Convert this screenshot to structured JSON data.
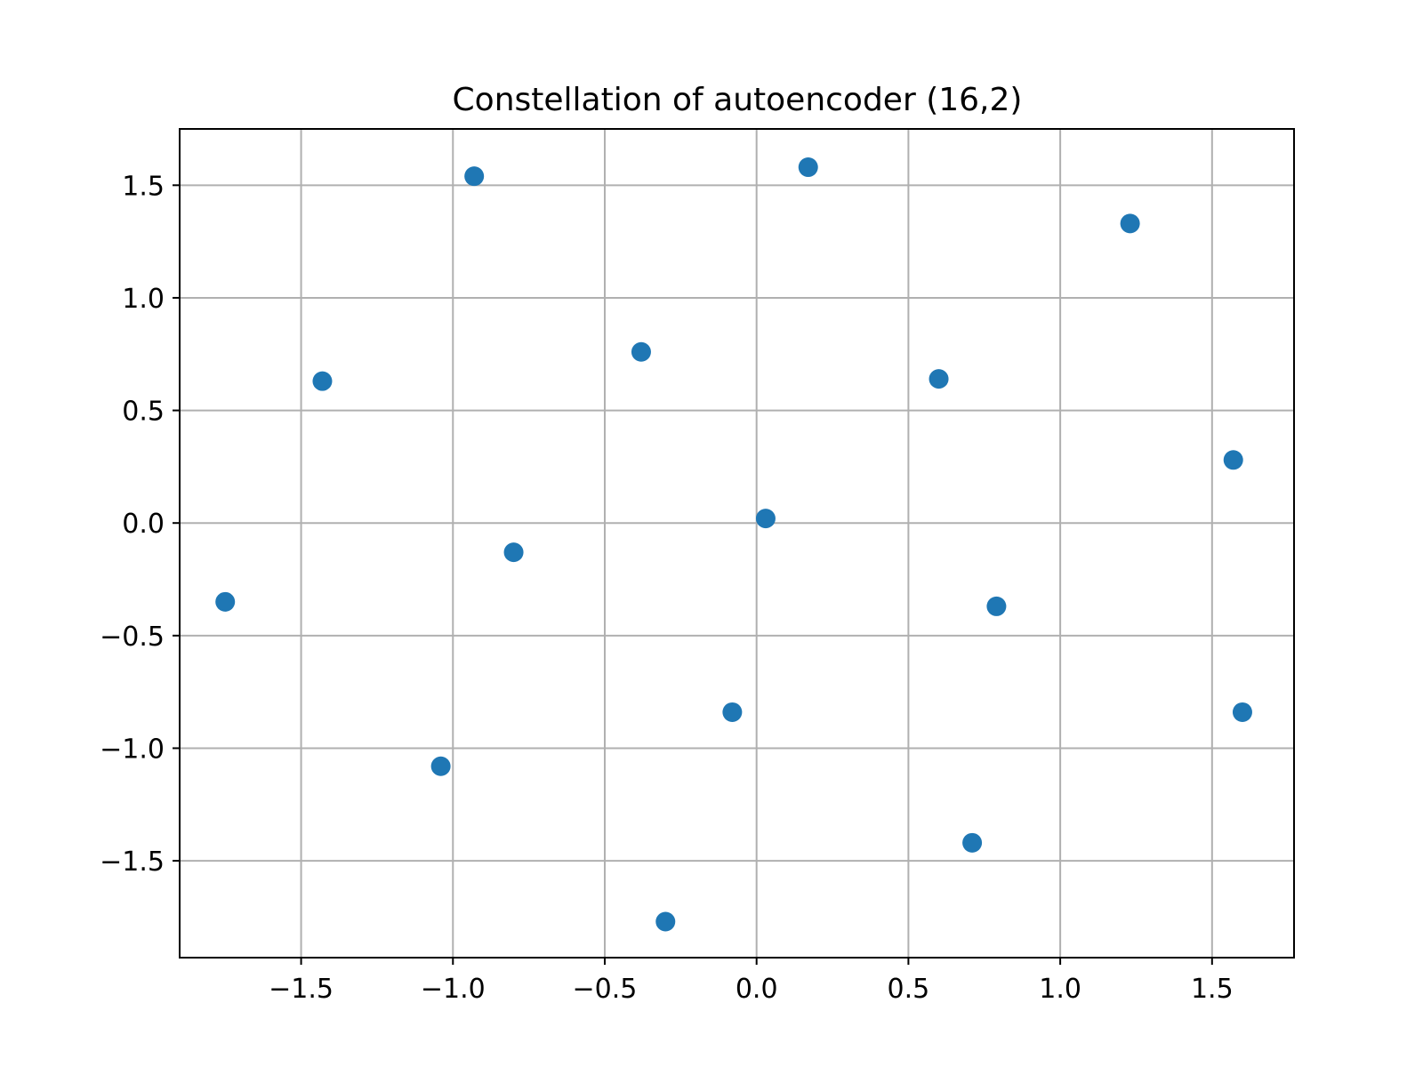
{
  "chart_data": {
    "type": "scatter",
    "title": "Constellation of autoencoder (16,2)",
    "xlabel": "",
    "ylabel": "",
    "xlim": [
      -1.9,
      1.77
    ],
    "ylim": [
      -1.93,
      1.75
    ],
    "xticks": [
      {
        "value": -1.5,
        "label": "−1.5"
      },
      {
        "value": -1.0,
        "label": "−1.0"
      },
      {
        "value": -0.5,
        "label": "−0.5"
      },
      {
        "value": 0.0,
        "label": "0.0"
      },
      {
        "value": 0.5,
        "label": "0.5"
      },
      {
        "value": 1.0,
        "label": "1.0"
      },
      {
        "value": 1.5,
        "label": "1.5"
      }
    ],
    "yticks": [
      {
        "value": 1.5,
        "label": "1.5"
      },
      {
        "value": 1.0,
        "label": "1.0"
      },
      {
        "value": 0.5,
        "label": "0.5"
      },
      {
        "value": 0.0,
        "label": "0.0"
      },
      {
        "value": -0.5,
        "label": "−0.5"
      },
      {
        "value": -1.0,
        "label": "−1.0"
      },
      {
        "value": -1.5,
        "label": "−1.5"
      }
    ],
    "grid": true,
    "color": "#1f77b4",
    "points": [
      {
        "x": -0.93,
        "y": 1.54
      },
      {
        "x": 0.17,
        "y": 1.58
      },
      {
        "x": 1.23,
        "y": 1.33
      },
      {
        "x": -1.43,
        "y": 0.63
      },
      {
        "x": -0.38,
        "y": 0.76
      },
      {
        "x": 0.6,
        "y": 0.64
      },
      {
        "x": 1.57,
        "y": 0.28
      },
      {
        "x": 0.03,
        "y": 0.02
      },
      {
        "x": -0.8,
        "y": -0.13
      },
      {
        "x": -1.75,
        "y": -0.35
      },
      {
        "x": 0.79,
        "y": -0.37
      },
      {
        "x": -0.08,
        "y": -0.84
      },
      {
        "x": 1.6,
        "y": -0.84
      },
      {
        "x": -1.04,
        "y": -1.08
      },
      {
        "x": 0.71,
        "y": -1.42
      },
      {
        "x": -0.3,
        "y": -1.77
      }
    ]
  }
}
